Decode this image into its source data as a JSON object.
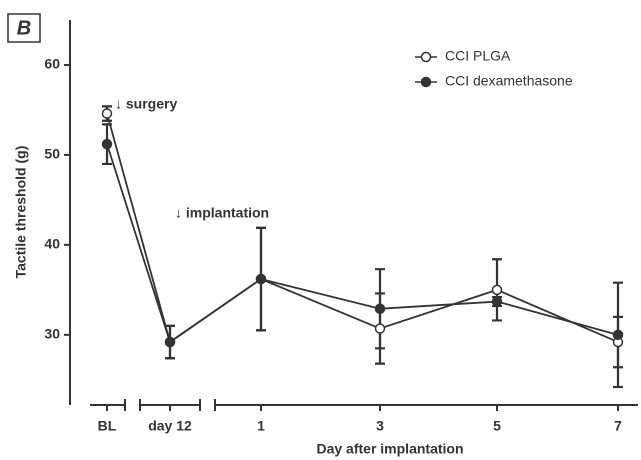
{
  "chart_data": {
    "type": "line",
    "panel_label": "B",
    "x_label": "Day after implantation",
    "y_label": "Tactile threshold (g)",
    "annotations": [
      "↓ surgery",
      "↓ implantation"
    ],
    "categories": [
      "BL",
      "day 12",
      "1",
      "3",
      "5",
      "7"
    ],
    "series": [
      {
        "name": "CCI PLGA",
        "color": "#333333",
        "marker": "open",
        "values": [
          54.6,
          29.2,
          36.2,
          30.7,
          35.0,
          29.2
        ],
        "errors": [
          0.8,
          1.8,
          5.7,
          3.9,
          3.4,
          2.8
        ]
      },
      {
        "name": "CCI dexamethasone",
        "color": "#333333",
        "marker": "filled",
        "values": [
          51.2,
          29.2,
          36.2,
          32.9,
          33.7,
          30.0
        ],
        "errors": [
          2.2,
          1.8,
          5.7,
          4.4,
          0.5,
          5.8
        ]
      }
    ],
    "ylim": [
      22.2,
      65
    ],
    "yticks": [
      30,
      40,
      50,
      60
    ],
    "legend": "upper right"
  }
}
